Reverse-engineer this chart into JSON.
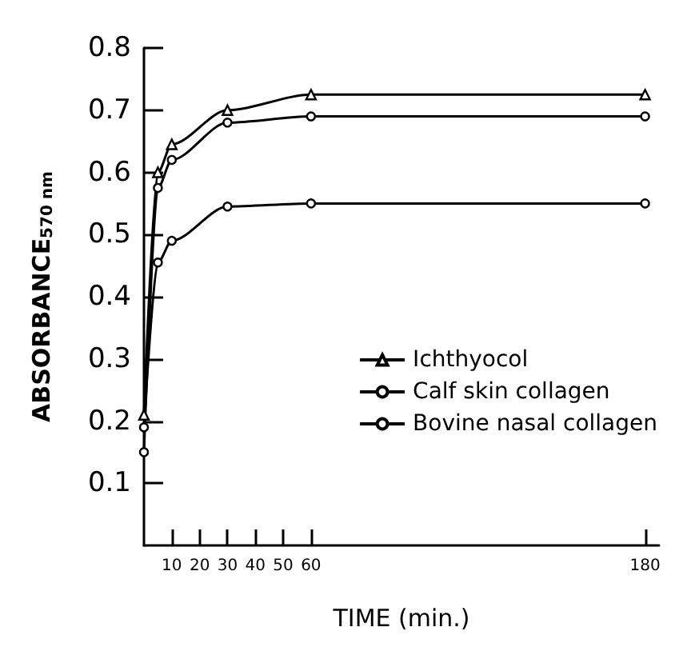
{
  "chart_data": {
    "type": "line",
    "xlabel": "TIME (min.)",
    "ylabel": "ABSORBANCE$_{570 nm}$",
    "x": [
      0,
      5,
      10,
      30,
      60,
      180
    ],
    "series": [
      {
        "name": "Ichthyocol",
        "color": "#000000",
        "marker": "triangle",
        "values": [
          0.21,
          0.6,
          0.645,
          0.7,
          0.725,
          0.725
        ]
      },
      {
        "name": "Calf skin collagen",
        "color": "#000000",
        "marker": "circle",
        "values": [
          0.15,
          0.575,
          0.62,
          0.68,
          0.69,
          0.69
        ]
      },
      {
        "name": "Bovine nasal collagen",
        "color": "#000000",
        "marker": "circle",
        "values": [
          0.19,
          0.455,
          0.49,
          0.545,
          0.55,
          0.55
        ]
      }
    ],
    "xlim": [
      0,
      185
    ],
    "xticks": [
      10,
      20,
      30,
      40,
      50,
      60,
      180
    ],
    "ylim": [
      0,
      0.8
    ],
    "yticks": [
      0.1,
      0.2,
      0.3,
      0.4,
      0.5,
      0.6,
      0.7,
      0.8
    ],
    "grid": false,
    "legend": "right",
    "line_style": "solid"
  }
}
